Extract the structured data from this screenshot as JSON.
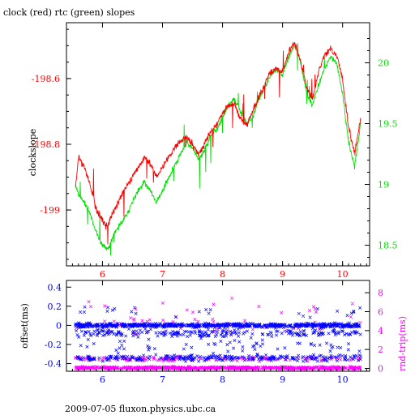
{
  "title": "clock (red) rtc (green) slopes",
  "footer": "2009-07-05 fluxon.physics.ubc.ca",
  "colors": {
    "clock": "#ff0000",
    "rtc": "#00e000",
    "offset": "#0000ff",
    "rndtrip": "#ff00ff",
    "axis": "#000000"
  },
  "chart_data": [
    {
      "type": "line",
      "name": "slopes",
      "ylabel": "clockslope",
      "xlim": [
        5.4,
        10.45
      ],
      "ylim_left": [
        -199.17,
        -198.43
      ],
      "ylim_right": [
        18.33,
        20.33
      ],
      "x_ticks": [
        "6",
        "7",
        "8",
        "9",
        "10"
      ],
      "y_ticks_left": [
        "-198.6",
        "-198.8",
        "-199"
      ],
      "y_ticks_right": [
        "20",
        "19.5",
        "19",
        "18.5"
      ],
      "grid": false,
      "series": [
        {
          "name": "clock",
          "axis": "left",
          "x": [
            5.55,
            5.6,
            5.7,
            5.8,
            5.9,
            6.0,
            6.05,
            6.1,
            6.2,
            6.3,
            6.4,
            6.5,
            6.6,
            6.7,
            6.8,
            6.9,
            7.0,
            7.1,
            7.2,
            7.3,
            7.4,
            7.5,
            7.6,
            7.7,
            7.8,
            7.9,
            8.0,
            8.1,
            8.2,
            8.3,
            8.4,
            8.5,
            8.6,
            8.7,
            8.8,
            8.9,
            9.0,
            9.1,
            9.2,
            9.3,
            9.4,
            9.5,
            9.6,
            9.7,
            9.8,
            9.9,
            10.0,
            10.1,
            10.2,
            10.3
          ],
          "values": [
            -198.93,
            -198.84,
            -198.87,
            -198.93,
            -199.0,
            -199.03,
            -199.05,
            -199.04,
            -199.0,
            -198.96,
            -198.93,
            -198.9,
            -198.87,
            -198.84,
            -198.86,
            -198.9,
            -198.87,
            -198.84,
            -198.81,
            -198.79,
            -198.78,
            -198.8,
            -198.83,
            -198.8,
            -198.76,
            -198.74,
            -198.71,
            -198.68,
            -198.68,
            -198.72,
            -198.74,
            -198.7,
            -198.66,
            -198.62,
            -198.58,
            -198.57,
            -198.58,
            -198.52,
            -198.49,
            -198.55,
            -198.63,
            -198.66,
            -198.58,
            -198.53,
            -198.51,
            -198.53,
            -198.6,
            -198.75,
            -198.83,
            -198.72
          ]
        },
        {
          "name": "rtc",
          "axis": "right",
          "x": [
            5.55,
            5.6,
            5.7,
            5.8,
            5.9,
            6.0,
            6.05,
            6.1,
            6.2,
            6.3,
            6.4,
            6.5,
            6.6,
            6.7,
            6.8,
            6.9,
            7.0,
            7.1,
            7.2,
            7.3,
            7.4,
            7.5,
            7.6,
            7.7,
            7.8,
            7.9,
            8.0,
            8.1,
            8.2,
            8.3,
            8.4,
            8.5,
            8.6,
            8.7,
            8.8,
            8.9,
            9.0,
            9.1,
            9.2,
            9.3,
            9.4,
            9.5,
            9.6,
            9.7,
            9.8,
            9.9,
            10.0,
            10.1,
            10.2,
            10.3
          ],
          "values": [
            19.0,
            18.92,
            18.85,
            18.75,
            18.6,
            18.5,
            18.47,
            18.48,
            18.6,
            18.68,
            18.75,
            18.85,
            18.95,
            19.02,
            18.95,
            18.85,
            18.95,
            19.05,
            19.15,
            19.25,
            19.35,
            19.3,
            19.2,
            19.28,
            19.4,
            19.45,
            19.55,
            19.65,
            19.7,
            19.6,
            19.5,
            19.55,
            19.7,
            19.8,
            19.9,
            19.95,
            19.9,
            20.05,
            20.15,
            20.0,
            19.75,
            19.65,
            19.82,
            19.95,
            20.05,
            20.0,
            19.75,
            19.35,
            19.15,
            19.5
          ]
        }
      ]
    },
    {
      "type": "scatter",
      "name": "offsets",
      "ylabel_left": "offset(ms)",
      "ylabel_right": "rnd-trip(ms)",
      "xlim": [
        5.4,
        10.45
      ],
      "ylim_left": [
        -0.48,
        0.47
      ],
      "ylim_right": [
        -0.3,
        9.3
      ],
      "x_ticks": [
        "6",
        "7",
        "8",
        "9",
        "10"
      ],
      "y_ticks_left": [
        "0.4",
        "0.2",
        "0",
        "-0.2",
        "-0.4"
      ],
      "y_ticks_right": [
        "8",
        "6",
        "4",
        "2",
        "0"
      ],
      "grid": false,
      "series": [
        {
          "name": "offset",
          "axis": "left",
          "marker": "x",
          "bands": [
            {
              "center": 0.0,
              "spread": 0.03,
              "count": 700
            },
            {
              "center": -0.08,
              "spread": 0.06,
              "count": 220
            },
            {
              "center": -0.34,
              "spread": 0.05,
              "count": 260
            },
            {
              "center": -0.2,
              "spread": 0.12,
              "count": 60
            },
            {
              "center": 0.15,
              "spread": 0.1,
              "count": 25
            }
          ]
        },
        {
          "name": "rnd-trip",
          "axis": "right",
          "marker": "x",
          "bands": [
            {
              "center": 0.05,
              "spread": 0.2,
              "count": 700
            },
            {
              "center": 1.0,
              "spread": 0.35,
              "count": 160
            },
            {
              "center": 4.5,
              "spread": 1.6,
              "count": 60
            },
            {
              "center": 6.5,
              "spread": 1.2,
              "count": 15
            }
          ]
        }
      ]
    }
  ]
}
